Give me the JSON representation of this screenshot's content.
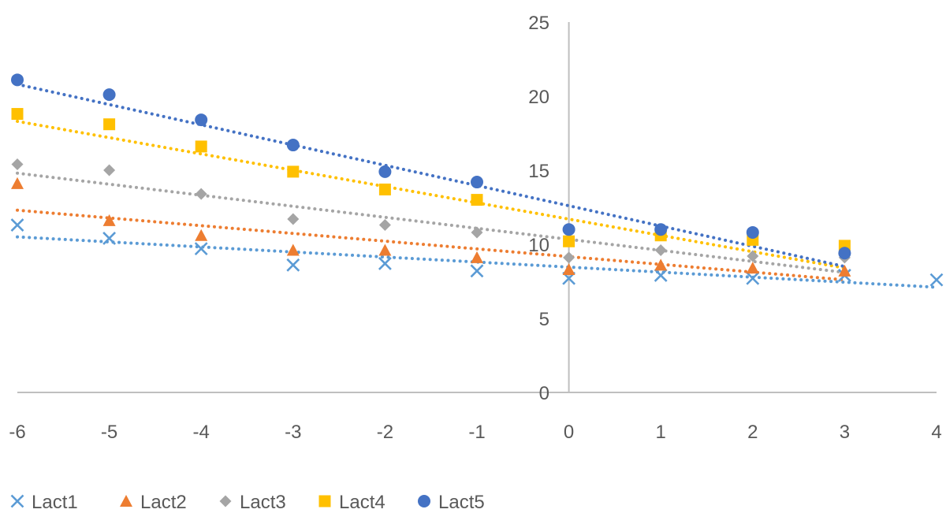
{
  "chart_data": {
    "type": "scatter",
    "title": "",
    "xlabel": "",
    "ylabel": "",
    "xlim": [
      -6,
      4
    ],
    "ylim": [
      0,
      25
    ],
    "x_ticks": [
      "-6",
      "-5",
      "-4",
      "-3",
      "-2",
      "-1",
      "0",
      "1",
      "2",
      "3",
      "4"
    ],
    "y_ticks": [
      "0",
      "5",
      "10",
      "15",
      "20",
      "25"
    ],
    "grid": false,
    "legend_position": "bottom",
    "trendlines": "linear, dotted",
    "series": [
      {
        "name": "Lact1",
        "marker": "x",
        "color": "#5B9BD5",
        "x": [
          -6,
          -5,
          -4,
          -3,
          -2,
          -1,
          0,
          1,
          2,
          3,
          4
        ],
        "y": [
          11.3,
          10.4,
          9.7,
          8.6,
          8.7,
          8.2,
          7.7,
          7.9,
          7.7,
          7.9,
          7.6
        ],
        "trend": [
          10.5,
          7.1
        ]
      },
      {
        "name": "Lact2",
        "marker": "triangle",
        "color": "#ED7D31",
        "x": [
          -6,
          -5,
          -4,
          -3,
          -2,
          -1,
          0,
          1,
          2,
          3
        ],
        "y": [
          14.1,
          11.6,
          10.6,
          9.6,
          9.6,
          9.1,
          8.3,
          8.6,
          8.4,
          8.2
        ],
        "trend": [
          12.3,
          7.6
        ]
      },
      {
        "name": "Lact3",
        "marker": "diamond",
        "color": "#A5A5A5",
        "x": [
          -6,
          -5,
          -4,
          -3,
          -2,
          -1,
          0,
          1,
          2,
          3
        ],
        "y": [
          15.4,
          15.0,
          13.4,
          11.7,
          11.3,
          10.8,
          9.1,
          9.6,
          9.2,
          9.1
        ],
        "trend": [
          14.8,
          8.1
        ]
      },
      {
        "name": "Lact4",
        "marker": "square",
        "color": "#FFC000",
        "x": [
          -6,
          -5,
          -4,
          -3,
          -2,
          -1,
          0,
          1,
          2,
          3
        ],
        "y": [
          18.8,
          18.1,
          16.6,
          14.9,
          13.7,
          13.0,
          10.2,
          10.6,
          10.3,
          9.9
        ],
        "trend": [
          18.3,
          8.4
        ]
      },
      {
        "name": "Lact5",
        "marker": "circle",
        "color": "#4472C4",
        "x": [
          -6,
          -5,
          -4,
          -3,
          -2,
          -1,
          0,
          1,
          2,
          3
        ],
        "y": [
          21.1,
          20.1,
          18.4,
          16.7,
          14.9,
          14.2,
          11.0,
          11.0,
          10.8,
          9.4
        ],
        "trend": [
          20.8,
          8.5
        ]
      }
    ]
  }
}
